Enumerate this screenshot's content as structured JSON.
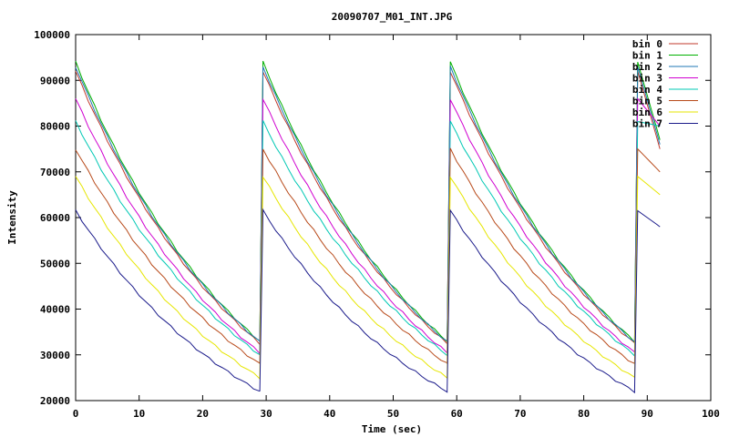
{
  "chart_data": {
    "type": "line",
    "title": "20090707_M01_INT.JPG",
    "xlabel": "Time (sec)",
    "ylabel": "Intensity",
    "xlim": [
      0,
      100
    ],
    "ylim": [
      20000,
      100000
    ],
    "x_ticks": [
      "0",
      "10",
      "20",
      "30",
      "40",
      "50",
      "60",
      "70",
      "80",
      "90",
      "100"
    ],
    "y_ticks": [
      "20000",
      "30000",
      "40000",
      "50000",
      "60000",
      "70000",
      "80000",
      "90000",
      "100000"
    ],
    "grid": false,
    "legend_position": "top-right",
    "reset_times": [
      0,
      29.5,
      59,
      88.5
    ],
    "series": [
      {
        "name": "bin 0",
        "color": "#c0392b",
        "peak": 92000,
        "trough": 32500,
        "end": 75000
      },
      {
        "name": "bin 1",
        "color": "#00b000",
        "peak": 94000,
        "trough": 33000,
        "end": 77000
      },
      {
        "name": "bin 2",
        "color": "#1f77b4",
        "peak": 93000,
        "trough": 32800,
        "end": 76000
      },
      {
        "name": "bin 3",
        "color": "#d000d0",
        "peak": 86000,
        "trough": 30500,
        "end": 80000
      },
      {
        "name": "bin 4",
        "color": "#00c8b4",
        "peak": 81000,
        "trough": 30000,
        "end": 80000
      },
      {
        "name": "bin 5",
        "color": "#b84a1a",
        "peak": 75000,
        "trough": 28000,
        "end": 70000
      },
      {
        "name": "bin 6",
        "color": "#e6e600",
        "peak": 69000,
        "trough": 25000,
        "end": 65000
      },
      {
        "name": "bin 7",
        "color": "#1a1a8a",
        "peak": 61500,
        "trough": 22000,
        "end": 58000
      }
    ]
  }
}
